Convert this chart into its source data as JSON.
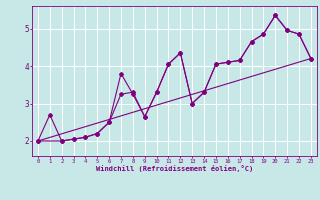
{
  "title": "",
  "xlabel": "Windchill (Refroidissement éolien,°C)",
  "bg_color": "#c8e8e8",
  "line_color": "#800080",
  "grid_color": "#ffffff",
  "xlim": [
    -0.5,
    23.5
  ],
  "ylim": [
    1.6,
    5.6
  ],
  "yticks": [
    2,
    3,
    4,
    5
  ],
  "xticks": [
    0,
    1,
    2,
    3,
    4,
    5,
    6,
    7,
    8,
    9,
    10,
    11,
    12,
    13,
    14,
    15,
    16,
    17,
    18,
    19,
    20,
    21,
    22,
    23
  ],
  "line1_x": [
    0,
    1,
    2,
    3,
    4,
    5,
    6,
    7,
    8,
    9,
    10,
    11,
    12,
    13,
    14,
    15,
    16,
    17,
    18,
    19,
    20,
    21,
    22,
    23
  ],
  "line1_y": [
    2.0,
    2.7,
    2.0,
    2.05,
    2.1,
    2.2,
    2.5,
    3.8,
    3.25,
    2.65,
    3.3,
    4.05,
    4.35,
    3.0,
    3.3,
    4.05,
    4.1,
    4.15,
    4.65,
    4.85,
    5.35,
    4.95,
    4.85,
    4.2
  ],
  "line2_x": [
    0,
    2,
    3,
    4,
    5,
    6,
    7,
    8,
    9,
    10,
    11,
    12,
    13,
    14,
    15,
    16,
    17,
    18,
    19,
    20,
    21,
    22,
    23
  ],
  "line2_y": [
    2.0,
    2.0,
    2.05,
    2.1,
    2.2,
    2.5,
    3.25,
    3.3,
    2.65,
    3.3,
    4.05,
    4.35,
    3.0,
    3.3,
    4.05,
    4.1,
    4.15,
    4.65,
    4.85,
    5.35,
    4.95,
    4.85,
    4.2
  ],
  "line3_x": [
    0,
    23
  ],
  "line3_y": [
    2.0,
    4.2
  ]
}
